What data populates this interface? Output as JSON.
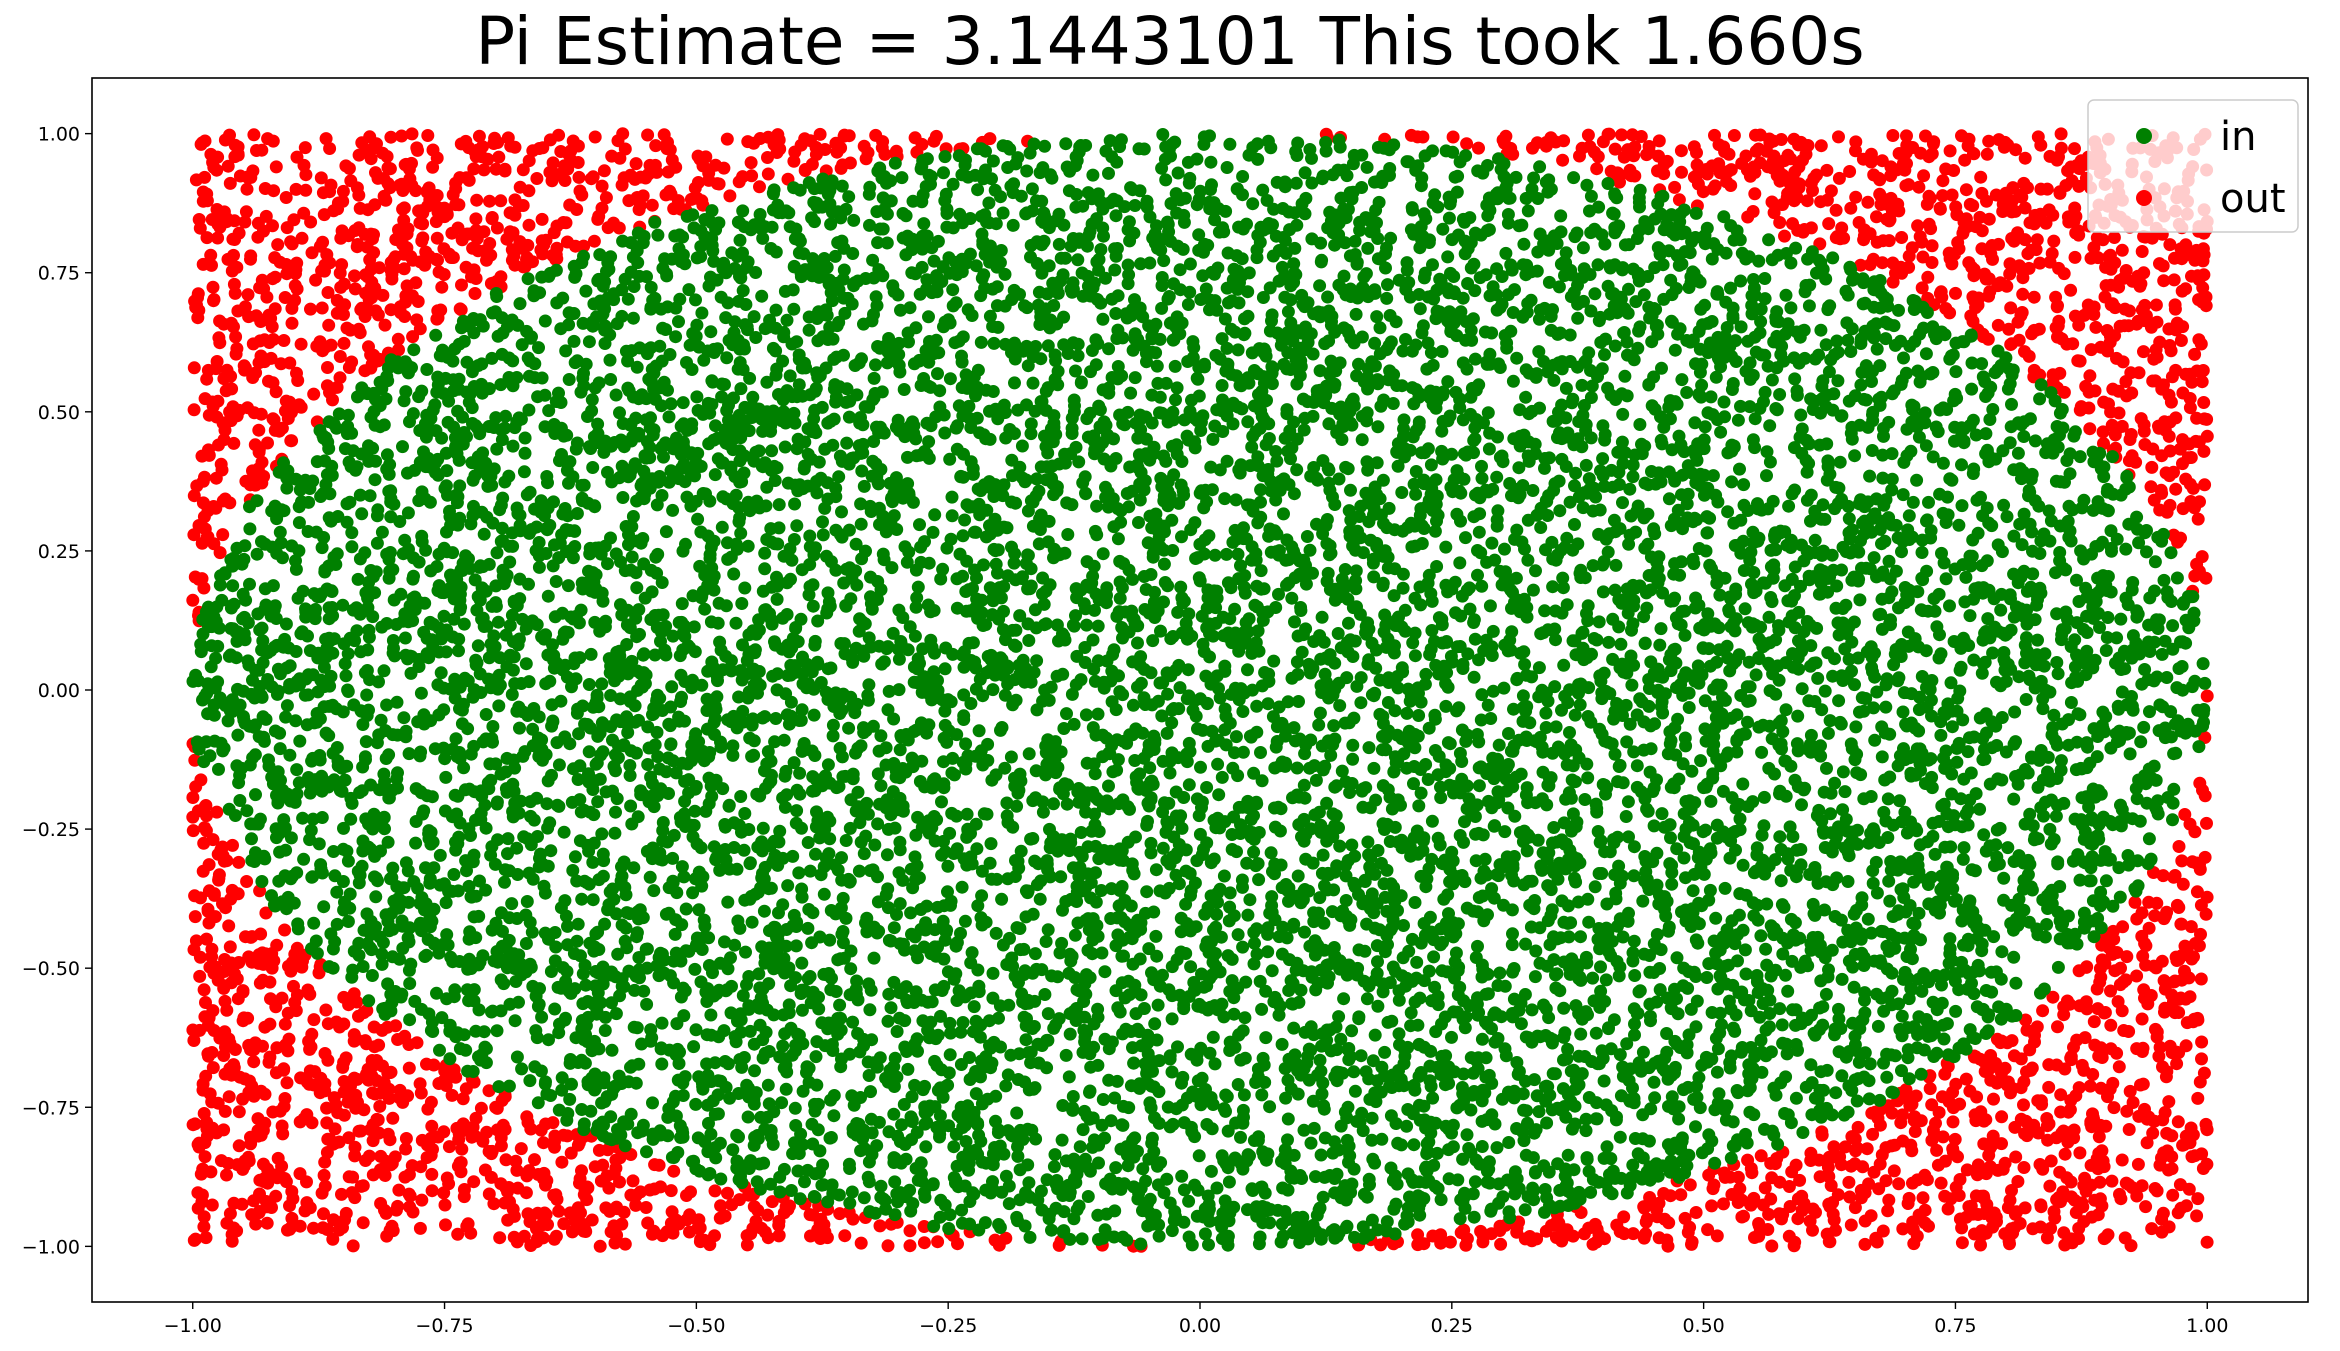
{
  "chart_data": {
    "type": "scatter",
    "title": "Pi Estimate = 3.1443101 This took 1.660s",
    "xlabel": "",
    "ylabel": "",
    "xlim": [
      -1.1,
      1.1
    ],
    "ylim": [
      -1.1,
      1.1
    ],
    "x_ticks": [
      -1.0,
      -0.75,
      -0.5,
      -0.25,
      0.0,
      0.25,
      0.5,
      0.75,
      1.0
    ],
    "x_tick_labels": [
      "−1.00",
      "−0.75",
      "−0.50",
      "−0.25",
      "0.00",
      "0.25",
      "0.50",
      "0.75",
      "1.00"
    ],
    "y_ticks": [
      1.0,
      0.75,
      0.5,
      0.25,
      0.0,
      -0.25,
      -0.5,
      -0.75,
      -1.0
    ],
    "y_tick_labels": [
      "1.00",
      "0.75",
      "0.50",
      "0.25",
      "0.00",
      "−0.25",
      "−0.50",
      "−0.75",
      "−1.00"
    ],
    "grid": false,
    "legend_position": "top-right",
    "series": [
      {
        "name": "in",
        "color": "#008000",
        "region": "x^2 + y^2 <= 1"
      },
      {
        "name": "out",
        "color": "#ff0000",
        "region": "x^2 + y^2 > 1"
      }
    ]
  }
}
